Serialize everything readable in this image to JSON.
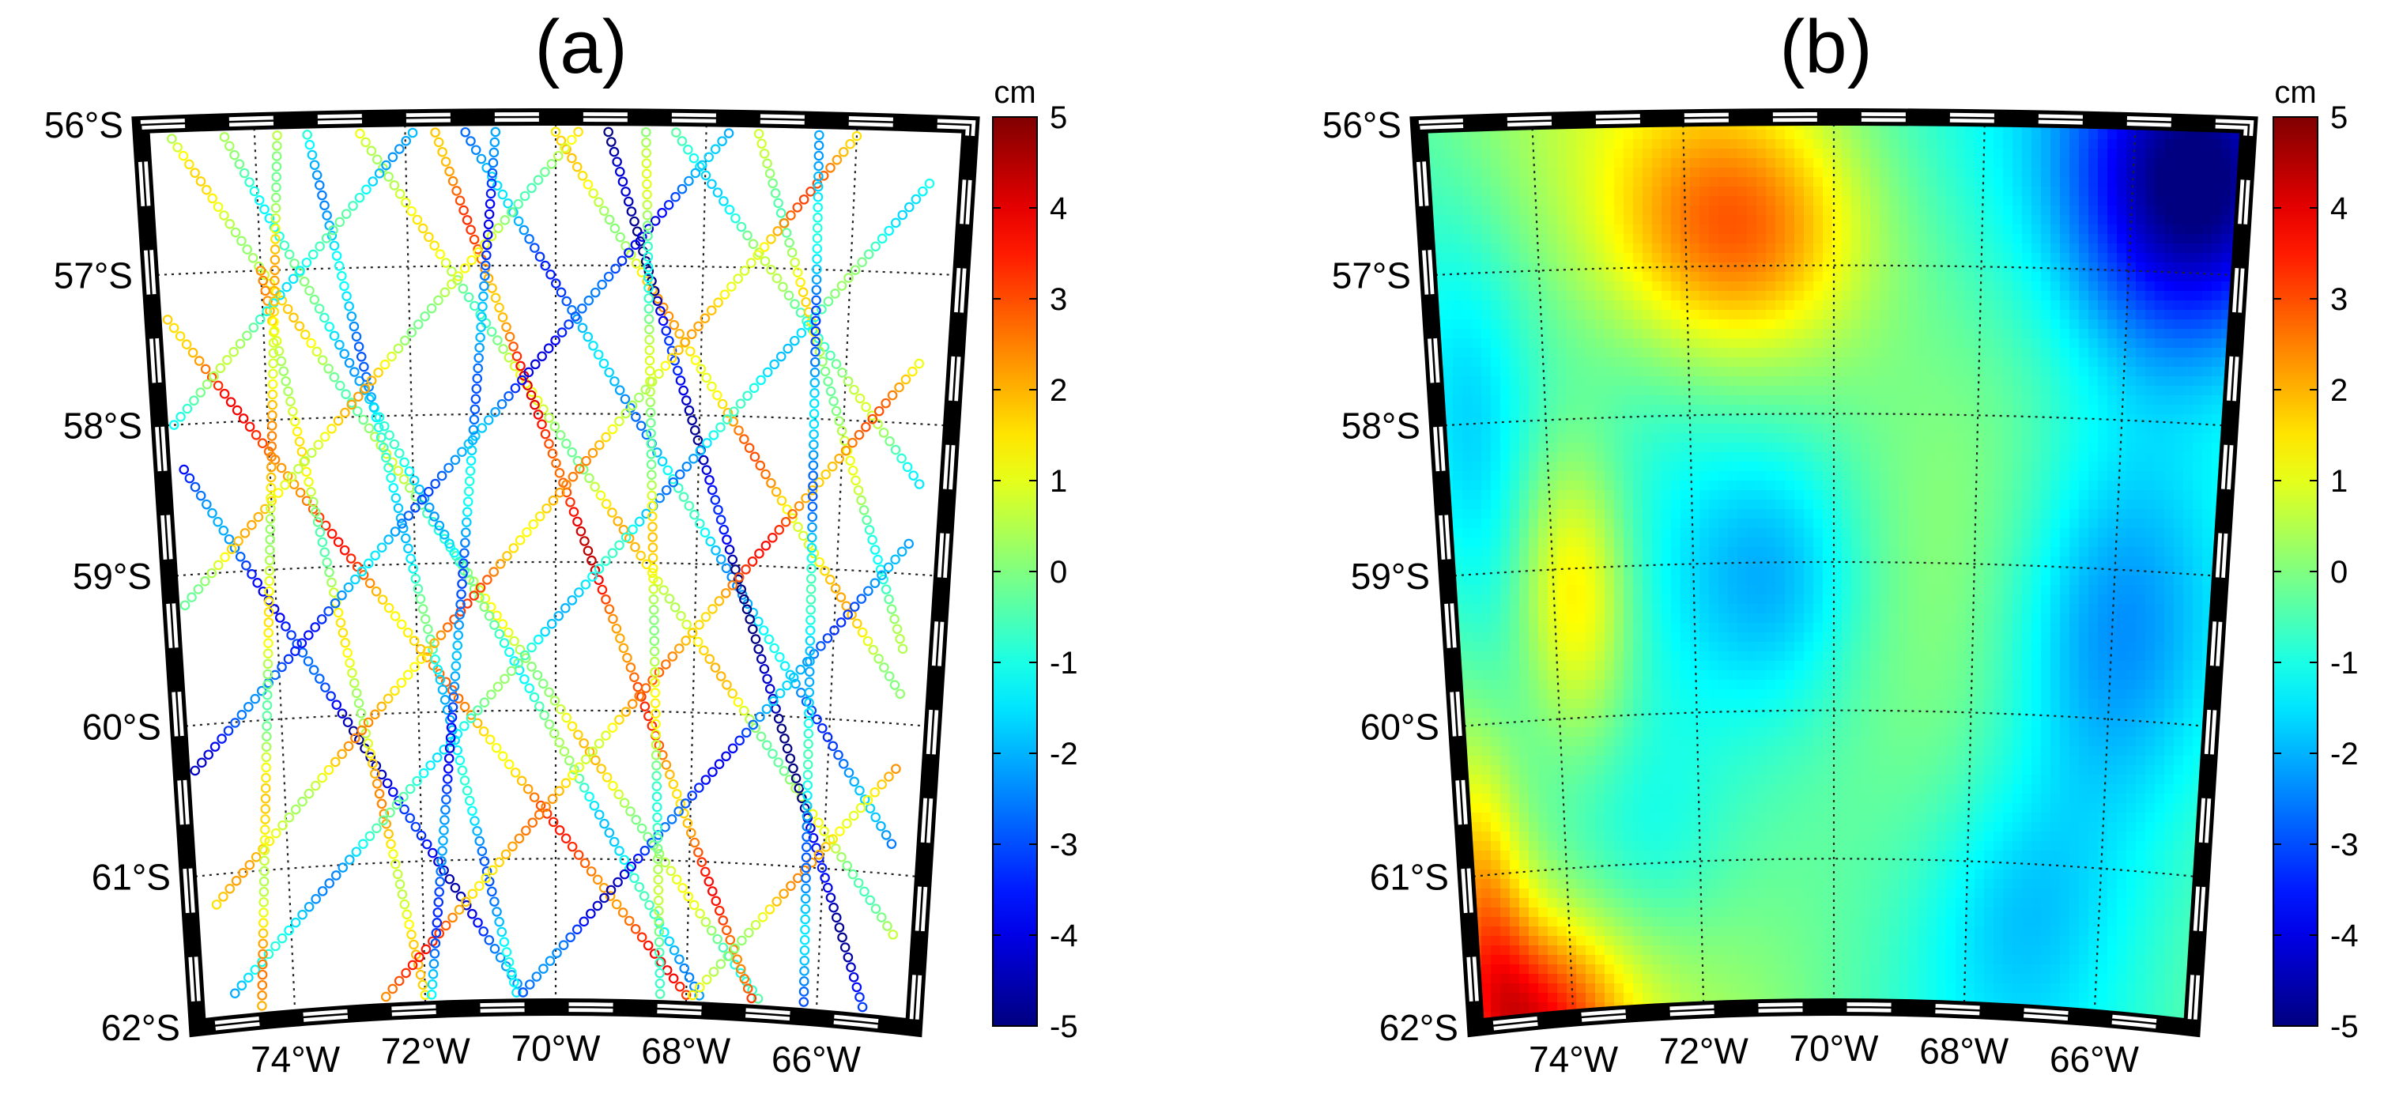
{
  "chart_data": [
    {
      "type": "scatter",
      "panel_label": "(a)",
      "description_kind": "along-track observations",
      "lat_ticks": [
        "56°S",
        "57°S",
        "58°S",
        "59°S",
        "60°S",
        "61°S",
        "62°S"
      ],
      "lon_ticks": [
        "74°W",
        "72°W",
        "70°W",
        "68°W",
        "66°W"
      ],
      "lat_values": [
        -56,
        -57,
        -58,
        -59,
        -60,
        -61,
        -62
      ],
      "lon_values": [
        -74,
        -72,
        -70,
        -68,
        -66
      ],
      "lon_range": [
        -75.5,
        -64.5
      ],
      "lat_range": [
        -62,
        -56
      ],
      "grid": true,
      "colorbar": {
        "unit": "cm",
        "min": -5,
        "max": 5,
        "tick_labels": [
          "5",
          "4",
          "3",
          "2",
          "1",
          "0",
          "-1",
          "-2",
          "-3",
          "-4",
          "-5"
        ],
        "colormap": "jet"
      },
      "tracks": [
        {
          "start": [
            -75.1,
            -56.1
          ],
          "end": [
            -66.9,
            -61.9
          ],
          "value": 0.5
        },
        {
          "start": [
            -74.4,
            -56.1
          ],
          "end": [
            -67.8,
            -61.9
          ],
          "value": -1.0
        },
        {
          "start": [
            -72.6,
            -56.1
          ],
          "end": [
            -64.9,
            -61.4
          ],
          "value": 0.8
        },
        {
          "start": [
            -71.2,
            -56.1
          ],
          "end": [
            -65.0,
            -60.8
          ],
          "value": -2.0
        },
        {
          "start": [
            -70.0,
            -56.1
          ],
          "end": [
            -65.0,
            -59.8
          ],
          "value": 1.5
        },
        {
          "start": [
            -68.4,
            -56.1
          ],
          "end": [
            -64.9,
            -58.4
          ],
          "value": -0.5
        },
        {
          "start": [
            -75.3,
            -57.3
          ],
          "end": [
            -68.0,
            -61.9
          ],
          "value": 2.5
        },
        {
          "start": [
            -75.2,
            -58.3
          ],
          "end": [
            -70.5,
            -61.9
          ],
          "value": -3.5
        },
        {
          "start": [
            -74.0,
            -57.0
          ],
          "end": [
            -72.0,
            -61.9
          ],
          "value": 1.0
        },
        {
          "start": [
            -73.3,
            -56.1
          ],
          "end": [
            -70.6,
            -61.9
          ],
          "value": -1.5
        },
        {
          "start": [
            -71.6,
            -56.1
          ],
          "end": [
            -67.0,
            -61.9
          ],
          "value": 3.0
        },
        {
          "start": [
            -69.3,
            -56.1
          ],
          "end": [
            -65.3,
            -61.9
          ],
          "value": -4.5
        },
        {
          "start": [
            -67.3,
            -56.1
          ],
          "end": [
            -65.0,
            -59.5
          ],
          "value": 0.2
        },
        {
          "start": [
            -65.0,
            -56.4
          ],
          "end": [
            -74.9,
            -61.8
          ],
          "value": -1.2
        },
        {
          "start": [
            -66.0,
            -56.1
          ],
          "end": [
            -75.1,
            -61.2
          ],
          "value": 1.8
        },
        {
          "start": [
            -67.7,
            -56.1
          ],
          "end": [
            -75.3,
            -60.3
          ],
          "value": -2.8
        },
        {
          "start": [
            -69.7,
            -56.1
          ],
          "end": [
            -75.3,
            -59.2
          ],
          "value": 0.9
        },
        {
          "start": [
            -71.9,
            -56.1
          ],
          "end": [
            -75.3,
            -58.0
          ],
          "value": -0.8
        },
        {
          "start": [
            -65.0,
            -57.6
          ],
          "end": [
            -72.6,
            -61.9
          ],
          "value": 2.2
        },
        {
          "start": [
            -65.0,
            -58.8
          ],
          "end": [
            -70.5,
            -61.9
          ],
          "value": -3.0
        },
        {
          "start": [
            -65.0,
            -60.3
          ],
          "end": [
            -67.9,
            -61.9
          ],
          "value": 1.3
        },
        {
          "start": [
            -66.5,
            -56.1
          ],
          "end": [
            -66.2,
            -61.9
          ],
          "value": -1.8
        },
        {
          "start": [
            -68.8,
            -56.1
          ],
          "end": [
            -68.4,
            -61.9
          ],
          "value": 0.4
        },
        {
          "start": [
            -70.8,
            -56.1
          ],
          "end": [
            -71.9,
            -61.9
          ],
          "value": -2.5
        },
        {
          "start": [
            -73.7,
            -56.1
          ],
          "end": [
            -74.5,
            -61.9
          ],
          "value": 1.1
        }
      ]
    },
    {
      "type": "heatmap",
      "panel_label": "(b)",
      "description_kind": "gridded field",
      "lat_ticks": [
        "56°S",
        "57°S",
        "58°S",
        "59°S",
        "60°S",
        "61°S",
        "62°S"
      ],
      "lon_ticks": [
        "74°W",
        "72°W",
        "70°W",
        "68°W",
        "66°W"
      ],
      "lat_values": [
        -56,
        -57,
        -58,
        -59,
        -60,
        -61,
        -62
      ],
      "lon_values": [
        -74,
        -72,
        -70,
        -68,
        -66
      ],
      "lon_range": [
        -75.5,
        -64.5
      ],
      "lat_range": [
        -62,
        -56
      ],
      "grid": true,
      "colorbar": {
        "unit": "cm",
        "min": -5,
        "max": 5,
        "tick_labels": [
          "5",
          "4",
          "3",
          "2",
          "1",
          "0",
          "-1",
          "-2",
          "-3",
          "-4",
          "-5"
        ],
        "colormap": "jet"
      },
      "field_features": [
        {
          "lon": -71.3,
          "lat": -56.7,
          "value": 2.6,
          "sigma_lon": 1.2,
          "sigma_lat": 0.6
        },
        {
          "lon": -73.7,
          "lat": -59.1,
          "value": 2.2,
          "sigma_lon": 0.6,
          "sigma_lat": 0.7
        },
        {
          "lon": -74.5,
          "lat": -62.0,
          "value": 3.2,
          "sigma_lon": 0.9,
          "sigma_lat": 0.5
        },
        {
          "lon": -75.3,
          "lat": -61.2,
          "value": 2.0,
          "sigma_lon": 0.5,
          "sigma_lat": 0.8
        },
        {
          "lon": -65.1,
          "lat": -56.4,
          "value": -5.0,
          "sigma_lon": 1.2,
          "sigma_lat": 0.8
        },
        {
          "lon": -66.0,
          "lat": -59.3,
          "value": -3.0,
          "sigma_lon": 1.2,
          "sigma_lat": 1.0
        },
        {
          "lon": -70.8,
          "lat": -59.0,
          "value": -1.6,
          "sigma_lon": 0.9,
          "sigma_lat": 0.6
        },
        {
          "lon": -75.1,
          "lat": -57.9,
          "value": -1.5,
          "sigma_lon": 0.7,
          "sigma_lat": 1.0
        },
        {
          "lon": -72.8,
          "lat": -60.8,
          "value": -1.0,
          "sigma_lon": 0.9,
          "sigma_lat": 0.5
        },
        {
          "lon": -67.2,
          "lat": -61.2,
          "value": -1.2,
          "sigma_lon": 1.0,
          "sigma_lat": 0.6
        }
      ],
      "field_background": -0.3
    }
  ]
}
